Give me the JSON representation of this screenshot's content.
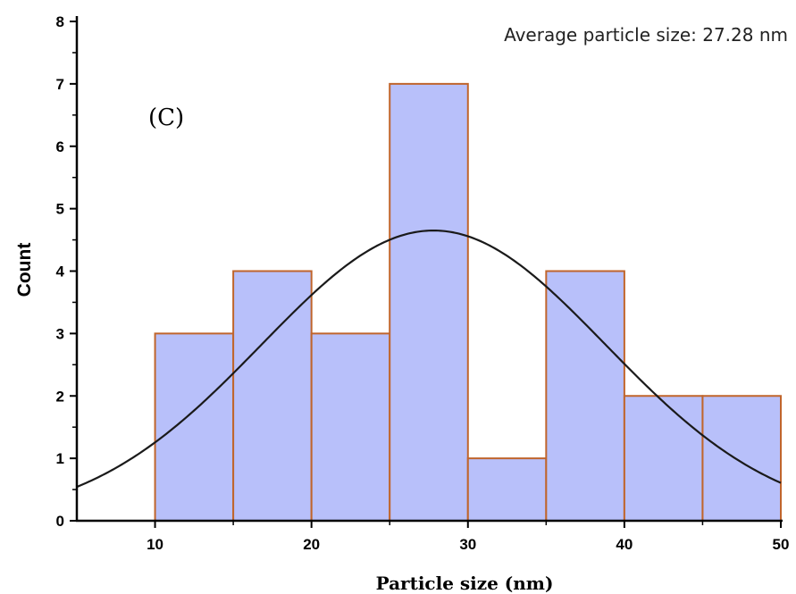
{
  "chart_data": {
    "type": "bar",
    "subtype": "histogram",
    "panel_label": "(C)",
    "annotation": "Average particle size: 27.28 nm",
    "xlabel": "Particle size (nm)",
    "ylabel": "Count",
    "xlim": [
      5,
      50
    ],
    "ylim": [
      0,
      8
    ],
    "x_ticks": [
      10,
      20,
      30,
      40,
      50
    ],
    "y_ticks": [
      0,
      1,
      2,
      3,
      4,
      5,
      6,
      7,
      8
    ],
    "bins": [
      {
        "start": 10,
        "end": 15,
        "count": 3
      },
      {
        "start": 15,
        "end": 20,
        "count": 4
      },
      {
        "start": 20,
        "end": 25,
        "count": 3
      },
      {
        "start": 25,
        "end": 30,
        "count": 7
      },
      {
        "start": 30,
        "end": 35,
        "count": 1
      },
      {
        "start": 35,
        "end": 40,
        "count": 4
      },
      {
        "start": 40,
        "end": 45,
        "count": 2
      },
      {
        "start": 45,
        "end": 50,
        "count": 2
      }
    ],
    "fit_curve": {
      "type": "normal",
      "mean": 27.8,
      "sigma": 11.0,
      "peak": 4.65
    },
    "colors": {
      "bar_fill": "#b8c0fa",
      "bar_edge": "#c0652c",
      "curve": "#1a1a1a",
      "axis": "#000000"
    }
  }
}
